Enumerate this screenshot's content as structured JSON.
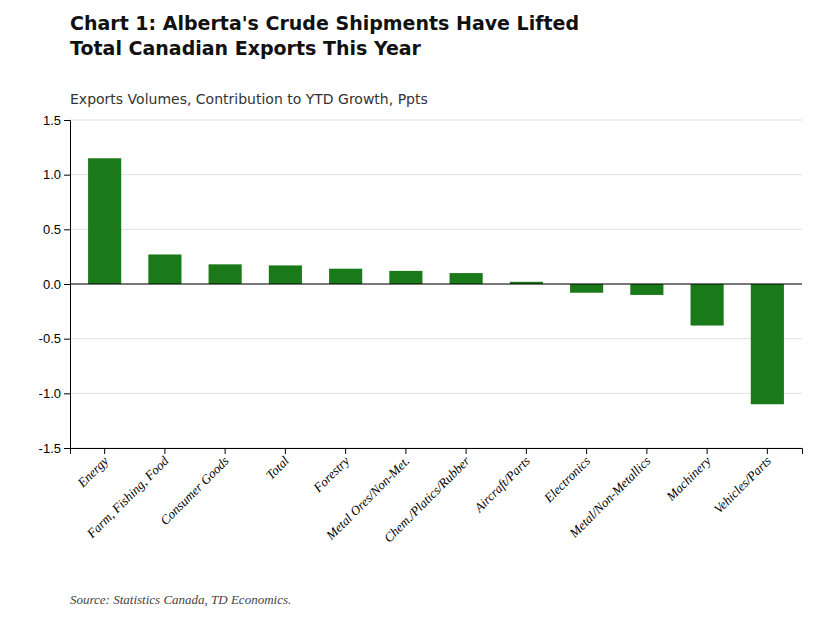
{
  "chart_data": {
    "type": "bar",
    "title": "Chart 1: Alberta's Crude Shipments Have Lifted\nTotal Canadian Exports This Year",
    "subtitle": "Exports Volumes, Contribution to YTD Growth, Ppts",
    "source": "Source: Statistics Canada, TD Economics.",
    "categories": [
      "Energy",
      "Farm, Fishing, Food",
      "Consumer Goods",
      "Total",
      "Forestry",
      "Metal Ores/Non-Met.",
      "Chem./Platics/Rubber",
      "Aircraft/Parts",
      "Electronics",
      "Metal/Non-Metallics",
      "Machinery",
      "Vehicles/Parts"
    ],
    "values": [
      1.15,
      0.27,
      0.18,
      0.17,
      0.14,
      0.12,
      0.1,
      0.02,
      -0.08,
      -0.1,
      -0.38,
      -1.1
    ],
    "color": "#1a7a1a",
    "ylim": [
      -1.5,
      1.5
    ],
    "yticks": [
      -1.5,
      {
        "value": -1.0,
        "label": "-1.0"
      },
      -0.5,
      {
        "value": 0.0,
        "label": "0.0"
      },
      0.5,
      {
        "value": 1.0,
        "label": "1.0"
      },
      1.5
    ],
    "grid": true
  }
}
